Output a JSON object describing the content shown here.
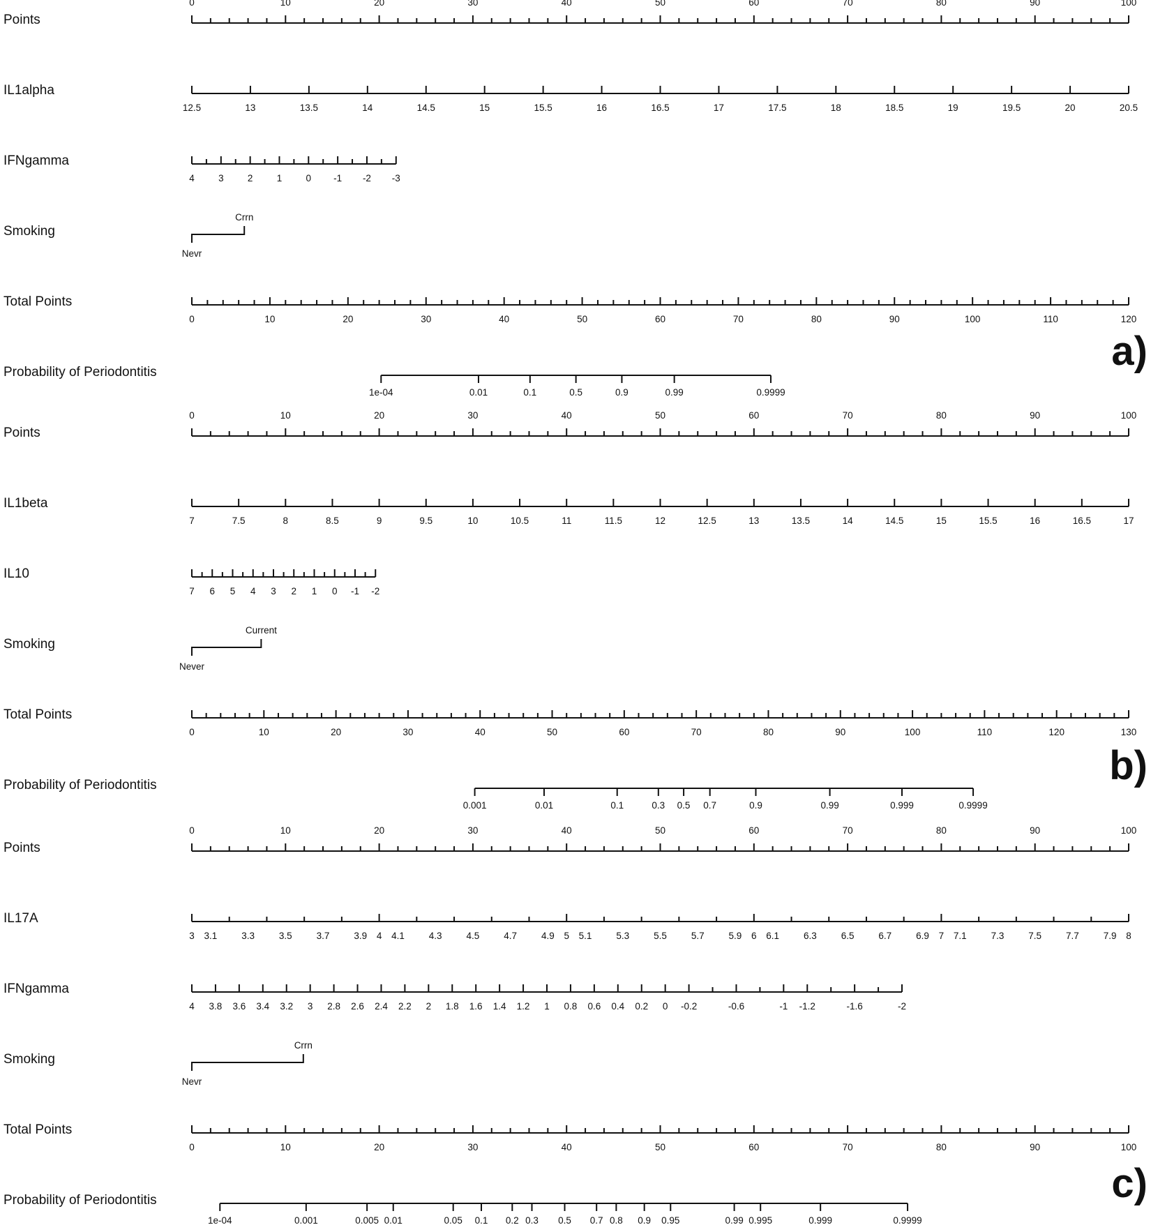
{
  "chart_data": [
    {
      "type": "nomogram",
      "panel": "a)",
      "rows": [
        {
          "label": "Points",
          "kind": "scale",
          "min": 0,
          "max": 100,
          "label_pos": "above",
          "labeled": [
            0,
            10,
            20,
            30,
            40,
            50,
            60,
            70,
            80,
            90,
            100
          ],
          "labels": [
            "0",
            "10",
            "20",
            "30",
            "40",
            "50",
            "60",
            "70",
            "80",
            "90",
            "100"
          ],
          "ticks": [
            0,
            2,
            4,
            6,
            8,
            10,
            12,
            14,
            16,
            18,
            20,
            22,
            24,
            26,
            28,
            30,
            32,
            34,
            36,
            38,
            40,
            42,
            44,
            46,
            48,
            50,
            52,
            54,
            56,
            58,
            60,
            62,
            64,
            66,
            68,
            70,
            72,
            74,
            76,
            78,
            80,
            82,
            84,
            86,
            88,
            90,
            92,
            94,
            96,
            98,
            100
          ]
        },
        {
          "label": "IL1alpha",
          "kind": "scale",
          "min": 12.5,
          "max": 20.5,
          "label_pos": "below",
          "labeled": [
            12.5,
            13,
            13.5,
            14,
            14.5,
            15,
            15.5,
            16,
            16.5,
            17,
            17.5,
            18,
            18.5,
            19,
            19.5,
            20,
            20.5
          ],
          "labels": [
            "12.5",
            "13",
            "13.5",
            "14",
            "14.5",
            "15",
            "15.5",
            "16",
            "16.5",
            "17",
            "17.5",
            "18",
            "18.5",
            "19",
            "19.5",
            "20",
            "20.5"
          ],
          "ticks": [
            12.5,
            13,
            13.5,
            14,
            14.5,
            15,
            15.5,
            16,
            16.5,
            17,
            17.5,
            18,
            18.5,
            19,
            19.5,
            20,
            20.5
          ]
        },
        {
          "label": "IFNgamma",
          "kind": "scale",
          "min": -3,
          "max": 4,
          "reverse": true,
          "extent": [
            0,
            21.8
          ],
          "label_pos": "below",
          "labeled": [
            4,
            3,
            2,
            1,
            0,
            -1,
            -2,
            -3
          ],
          "labels": [
            "4",
            "3",
            "2",
            "1",
            "0",
            "-1",
            "-2",
            "-3"
          ],
          "ticks": [
            4,
            3.5,
            3,
            2.5,
            2,
            1.5,
            1,
            0.5,
            0,
            -0.5,
            -1,
            -1.5,
            -2,
            -2.5,
            -3
          ]
        },
        {
          "label": "Smoking",
          "kind": "categorical",
          "categories": [
            "Nevr",
            "Crrn"
          ],
          "points": [
            0,
            5.6
          ]
        },
        {
          "label": "Total Points",
          "kind": "scale",
          "min": 0,
          "max": 120,
          "label_pos": "below",
          "labeled": [
            0,
            10,
            20,
            30,
            40,
            50,
            60,
            70,
            80,
            90,
            100,
            110,
            120
          ],
          "labels": [
            "0",
            "10",
            "20",
            "30",
            "40",
            "50",
            "60",
            "70",
            "80",
            "90",
            "100",
            "110",
            "120"
          ],
          "ticks": [
            0,
            2,
            4,
            6,
            8,
            10,
            12,
            14,
            16,
            18,
            20,
            22,
            24,
            26,
            28,
            30,
            32,
            34,
            36,
            38,
            40,
            42,
            44,
            46,
            48,
            50,
            52,
            54,
            56,
            58,
            60,
            62,
            64,
            66,
            68,
            70,
            72,
            74,
            76,
            78,
            80,
            82,
            84,
            86,
            88,
            90,
            92,
            94,
            96,
            98,
            100,
            102,
            104,
            106,
            108,
            110,
            112,
            114,
            116,
            118,
            120
          ]
        },
        {
          "label": "Probability of Periodontitis",
          "kind": "probability",
          "labels": [
            "1e-04",
            "0.01",
            "0.1",
            "0.5",
            "0.9",
            "0.99",
            "0.9999"
          ],
          "points": [
            20.2,
            30.6,
            36.1,
            41.0,
            45.9,
            51.5,
            61.8
          ]
        }
      ]
    },
    {
      "type": "nomogram",
      "panel": "b)",
      "rows": [
        {
          "label": "Points",
          "kind": "scale",
          "min": 0,
          "max": 100,
          "label_pos": "above",
          "labeled": [
            0,
            10,
            20,
            30,
            40,
            50,
            60,
            70,
            80,
            90,
            100
          ],
          "labels": [
            "0",
            "10",
            "20",
            "30",
            "40",
            "50",
            "60",
            "70",
            "80",
            "90",
            "100"
          ],
          "ticks": [
            0,
            2,
            4,
            6,
            8,
            10,
            12,
            14,
            16,
            18,
            20,
            22,
            24,
            26,
            28,
            30,
            32,
            34,
            36,
            38,
            40,
            42,
            44,
            46,
            48,
            50,
            52,
            54,
            56,
            58,
            60,
            62,
            64,
            66,
            68,
            70,
            72,
            74,
            76,
            78,
            80,
            82,
            84,
            86,
            88,
            90,
            92,
            94,
            96,
            98,
            100
          ]
        },
        {
          "label": "IL1beta",
          "kind": "scale",
          "min": 7,
          "max": 17,
          "label_pos": "below",
          "labeled": [
            7,
            7.5,
            8,
            8.5,
            9,
            9.5,
            10,
            10.5,
            11,
            11.5,
            12,
            12.5,
            13,
            13.5,
            14,
            14.5,
            15,
            15.5,
            16,
            16.5,
            17
          ],
          "labels": [
            "7",
            "7.5",
            "8",
            "8.5",
            "9",
            "9.5",
            "10",
            "10.5",
            "11",
            "11.5",
            "12",
            "12.5",
            "13",
            "13.5",
            "14",
            "14.5",
            "15",
            "15.5",
            "16",
            "16.5",
            "17"
          ],
          "ticks": [
            7,
            7.5,
            8,
            8.5,
            9,
            9.5,
            10,
            10.5,
            11,
            11.5,
            12,
            12.5,
            13,
            13.5,
            14,
            14.5,
            15,
            15.5,
            16,
            16.5,
            17
          ]
        },
        {
          "label": "IL10",
          "kind": "scale",
          "min": -2,
          "max": 7,
          "reverse": true,
          "extent": [
            0,
            19.6
          ],
          "label_pos": "below",
          "labeled": [
            7,
            6,
            5,
            4,
            3,
            2,
            1,
            0,
            -1,
            -2
          ],
          "labels": [
            "7",
            "6",
            "5",
            "4",
            "3",
            "2",
            "1",
            "0",
            "-1",
            "-2"
          ],
          "ticks": [
            7,
            6.5,
            6,
            5.5,
            5,
            4.5,
            4,
            3.5,
            3,
            2.5,
            2,
            1.5,
            1,
            0.5,
            0,
            -0.5,
            -1,
            -1.5,
            -2
          ]
        },
        {
          "label": "Smoking",
          "kind": "categorical",
          "categories": [
            "Never",
            "Current"
          ],
          "points": [
            0,
            7.4
          ]
        },
        {
          "label": "Total Points",
          "kind": "scale",
          "min": 0,
          "max": 130,
          "label_pos": "below",
          "labeled": [
            0,
            10,
            20,
            30,
            40,
            50,
            60,
            70,
            80,
            90,
            100,
            110,
            120,
            130
          ],
          "labels": [
            "0",
            "10",
            "20",
            "30",
            "40",
            "50",
            "60",
            "70",
            "80",
            "90",
            "100",
            "110",
            "120",
            "130"
          ],
          "ticks": [
            0,
            2,
            4,
            6,
            8,
            10,
            12,
            14,
            16,
            18,
            20,
            22,
            24,
            26,
            28,
            30,
            32,
            34,
            36,
            38,
            40,
            42,
            44,
            46,
            48,
            50,
            52,
            54,
            56,
            58,
            60,
            62,
            64,
            66,
            68,
            70,
            72,
            74,
            76,
            78,
            80,
            82,
            84,
            86,
            88,
            90,
            92,
            94,
            96,
            98,
            100,
            102,
            104,
            106,
            108,
            110,
            112,
            114,
            116,
            118,
            120,
            122,
            124,
            126,
            128,
            130
          ]
        },
        {
          "label": "Probability of Periodontitis",
          "kind": "probability",
          "labels": [
            "0.001",
            "0.01",
            "0.1",
            "0.3",
            "0.5",
            "0.7",
            "0.9",
            "0.99",
            "0.999",
            "0.9999"
          ],
          "points": [
            30.2,
            37.6,
            45.4,
            49.8,
            52.5,
            55.3,
            60.2,
            68.1,
            75.8,
            83.4
          ]
        }
      ]
    },
    {
      "type": "nomogram",
      "panel": "c)",
      "rows": [
        {
          "label": "Points",
          "kind": "scale",
          "min": 0,
          "max": 100,
          "label_pos": "above",
          "labeled": [
            0,
            10,
            20,
            30,
            40,
            50,
            60,
            70,
            80,
            90,
            100
          ],
          "labels": [
            "0",
            "10",
            "20",
            "30",
            "40",
            "50",
            "60",
            "70",
            "80",
            "90",
            "100"
          ],
          "ticks": [
            0,
            2,
            4,
            6,
            8,
            10,
            12,
            14,
            16,
            18,
            20,
            22,
            24,
            26,
            28,
            30,
            32,
            34,
            36,
            38,
            40,
            42,
            44,
            46,
            48,
            50,
            52,
            54,
            56,
            58,
            60,
            62,
            64,
            66,
            68,
            70,
            72,
            74,
            76,
            78,
            80,
            82,
            84,
            86,
            88,
            90,
            92,
            94,
            96,
            98,
            100
          ]
        },
        {
          "label": "IL17A",
          "kind": "scale",
          "min": 3,
          "max": 8,
          "label_pos": "below",
          "labeled": [
            3,
            3.1,
            3.3,
            3.5,
            3.7,
            3.9,
            4,
            4.1,
            4.3,
            4.5,
            4.7,
            4.9,
            5,
            5.1,
            5.3,
            5.5,
            5.7,
            5.9,
            6,
            6.1,
            6.3,
            6.5,
            6.7,
            6.9,
            7,
            7.1,
            7.3,
            7.5,
            7.7,
            7.9,
            8
          ],
          "labels": [
            "3",
            "3.1",
            "3.3",
            "3.5",
            "3.7",
            "3.9",
            "4",
            "4.1",
            "4.3",
            "4.5",
            "4.7",
            "4.9",
            "5",
            "5.1",
            "5.3",
            "5.5",
            "5.7",
            "5.9",
            "6",
            "6.1",
            "6.3",
            "6.5",
            "6.7",
            "6.9",
            "7",
            "7.1",
            "7.3",
            "7.5",
            "7.7",
            "7.9",
            "8"
          ],
          "ticks": [
            3,
            3.2,
            3.4,
            3.6,
            3.8,
            4,
            4.2,
            4.4,
            4.6,
            4.8,
            5,
            5.2,
            5.4,
            5.6,
            5.8,
            6,
            6.2,
            6.4,
            6.6,
            6.8,
            7,
            7.2,
            7.4,
            7.6,
            7.8,
            8
          ]
        },
        {
          "label": "IFNgamma",
          "kind": "scale",
          "min": -2,
          "max": 4,
          "reverse": true,
          "extent": [
            0,
            75.8
          ],
          "label_pos": "below",
          "labeled": [
            4,
            3.8,
            3.6,
            3.4,
            3.2,
            3,
            2.8,
            2.6,
            2.4,
            2.2,
            2,
            1.8,
            1.6,
            1.4,
            1.2,
            1,
            0.8,
            0.6,
            0.4,
            0.2,
            0,
            -0.2,
            -0.6,
            -1,
            -1.2,
            -1.6,
            -2
          ],
          "labels": [
            "4",
            "3.8",
            "3.6",
            "3.4",
            "3.2",
            "3",
            "2.8",
            "2.6",
            "2.4",
            "2.2",
            "2",
            "1.8",
            "1.6",
            "1.4",
            "1.2",
            "1",
            "0.8",
            "0.6",
            "0.4",
            "0.2",
            "0",
            "-0.2",
            "-0.6",
            "-1",
            "-1.2",
            "-1.6",
            "-2"
          ],
          "ticks": [
            4,
            3.8,
            3.6,
            3.4,
            3.2,
            3,
            2.8,
            2.6,
            2.4,
            2.2,
            2,
            1.8,
            1.6,
            1.4,
            1.2,
            1,
            0.8,
            0.6,
            0.4,
            0.2,
            0,
            -0.2,
            -0.4,
            -0.6,
            -0.8,
            -1,
            -1.2,
            -1.4,
            -1.6,
            -1.8,
            -2
          ]
        },
        {
          "label": "Smoking",
          "kind": "categorical",
          "categories": [
            "Nevr",
            "Crrn"
          ],
          "points": [
            0,
            11.9
          ]
        },
        {
          "label": "Total Points",
          "kind": "scale",
          "min": 0,
          "max": 100,
          "label_pos": "below",
          "labeled": [
            0,
            10,
            20,
            30,
            40,
            50,
            60,
            70,
            80,
            90,
            100
          ],
          "labels": [
            "0",
            "10",
            "20",
            "30",
            "40",
            "50",
            "60",
            "70",
            "80",
            "90",
            "100"
          ],
          "ticks": [
            0,
            2,
            4,
            6,
            8,
            10,
            12,
            14,
            16,
            18,
            20,
            22,
            24,
            26,
            28,
            30,
            32,
            34,
            36,
            38,
            40,
            42,
            44,
            46,
            48,
            50,
            52,
            54,
            56,
            58,
            60,
            62,
            64,
            66,
            68,
            70,
            72,
            74,
            76,
            78,
            80,
            82,
            84,
            86,
            88,
            90,
            92,
            94,
            96,
            98,
            100
          ]
        },
        {
          "label": "Probability of Periodontitis",
          "kind": "probability",
          "labels": [
            "1e-04",
            "0.001",
            "0.005",
            "0.01",
            "0.05",
            "0.1",
            "0.2",
            "0.3",
            "0.5",
            "0.7",
            "0.8",
            "0.9",
            "0.95",
            "0.99",
            "0.995",
            "0.999",
            "0.9999"
          ],
          "points": [
            3.0,
            12.2,
            18.7,
            21.5,
            27.9,
            30.9,
            34.2,
            36.3,
            39.8,
            43.2,
            45.3,
            48.3,
            51.1,
            57.9,
            60.7,
            67.1,
            76.4
          ]
        }
      ]
    }
  ]
}
